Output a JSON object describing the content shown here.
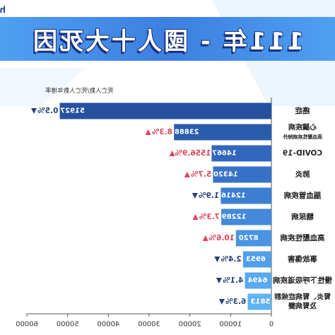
{
  "brand": {
    "name": "hello醫師"
  },
  "title": "111年 - 國人十大死因",
  "chart_data": {
    "type": "bar",
    "orientation": "horizontal",
    "mirrored": true,
    "title": "111年 - 國人十大死因",
    "ylabel": "死亡人數/死亡人數年增率",
    "xlim": [
      0,
      60000
    ],
    "xticks": [
      0,
      10000,
      20000,
      30000,
      40000,
      50000,
      60000
    ],
    "xtick_labels": [
      "0",
      "10000",
      "20000",
      "30000",
      "40000",
      "50000",
      "60000"
    ],
    "grid": false,
    "categories": [
      [
        "癌症"
      ],
      [
        "心臟疾病",
        "高血壓性疾病除外"
      ],
      [
        "COVID-19"
      ],
      [
        "肺炎"
      ],
      [
        "腦血管疾病"
      ],
      [
        "糖尿病"
      ],
      [
        "高血壓性疾病"
      ],
      [
        "事故傷害"
      ],
      [
        "慢性下呼吸道疾病"
      ],
      [
        "腎炎、腎病症候群",
        "及腎病變"
      ]
    ],
    "values": [
      51927,
      23888,
      14667,
      14320,
      12416,
      12289,
      8720,
      6953,
      6494,
      5813
    ],
    "value_labels": [
      "51927",
      "23888",
      "14667",
      "14320",
      "12416",
      "12289",
      "8720",
      "6953",
      "6494",
      "5813"
    ],
    "growth": [
      {
        "label": "0.5%",
        "dir": "down"
      },
      {
        "label": "8.3%",
        "dir": "up"
      },
      {
        "label": "1556.9%",
        "dir": "up"
      },
      {
        "label": "5.7%",
        "dir": "up"
      },
      {
        "label": "1.9%",
        "dir": "down"
      },
      {
        "label": "7.3%",
        "dir": "up"
      },
      {
        "label": "10.6%",
        "dir": "up"
      },
      {
        "label": "2.4%",
        "dir": "down"
      },
      {
        "label": "4.1%",
        "dir": "down"
      },
      {
        "label": "6.3%",
        "dir": "down"
      }
    ],
    "colors": {
      "bars": [
        "#25519f",
        "#2a5cae",
        "#3067bc",
        "#3672c8",
        "#3c7ed3",
        "#4389dc",
        "#4a94e3",
        "#519fe9",
        "#58a9ee",
        "#60b3f2"
      ],
      "up": "#e04255",
      "down": "#24417a",
      "title_band": "#3c7fe0"
    }
  }
}
